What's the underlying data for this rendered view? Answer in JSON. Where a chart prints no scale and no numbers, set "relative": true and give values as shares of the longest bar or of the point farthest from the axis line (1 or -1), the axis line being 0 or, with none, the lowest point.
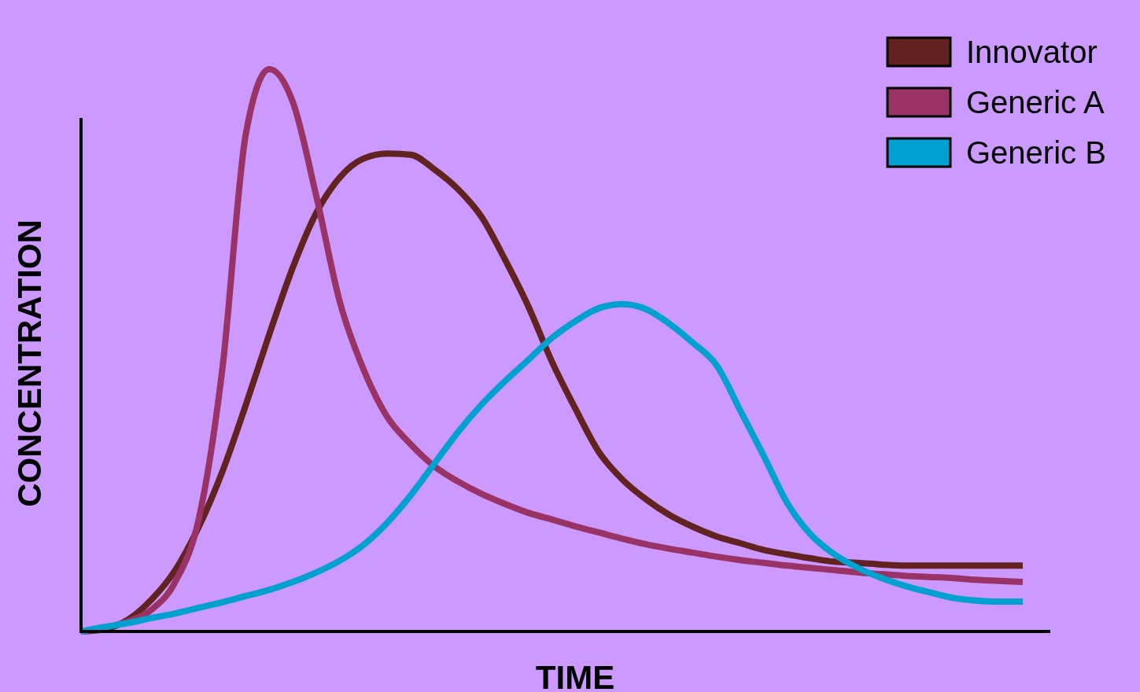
{
  "chart_data": {
    "type": "line",
    "relative": true,
    "xlabel": "TIME",
    "ylabel": "CONCENTRATION",
    "legend": "top right",
    "marker": "none",
    "line_style": "solid",
    "categories": [
      null,
      null,
      null,
      null,
      null,
      null,
      null,
      null,
      null,
      null,
      null,
      null,
      null,
      null,
      null,
      null,
      null,
      null,
      null,
      null,
      null,
      null,
      null,
      null,
      null,
      null,
      null,
      null,
      null,
      null,
      null,
      null,
      null,
      null,
      null,
      null,
      null,
      null,
      null,
      null,
      null
    ],
    "series": [
      {
        "name": "Innovator",
        "color": "#62221f",
        "values": [
          0,
          0.004,
          0.021,
          0.057,
          0.109,
          0.186,
          0.284,
          0.403,
          0.529,
          0.648,
          0.745,
          0.808,
          0.841,
          0.85,
          0.848,
          0.822,
          0.787,
          0.738,
          0.662,
          0.578,
          0.48,
          0.396,
          0.319,
          0.27,
          0.235,
          0.207,
          0.186,
          0.169,
          0.157,
          0.145,
          0.137,
          0.13,
          0.124,
          0.122,
          0.119,
          0.117,
          0.117,
          0.117,
          0.117,
          0.117,
          0.117
        ]
      },
      {
        "name": "Generic A",
        "color": "#993366",
        "values": [
          0,
          0.007,
          0.018,
          0.039,
          0.088,
          0.2,
          0.466,
          0.885,
          1,
          0.941,
          0.773,
          0.585,
          0.466,
          0.382,
          0.333,
          0.294,
          0.267,
          0.245,
          0.227,
          0.211,
          0.199,
          0.187,
          0.176,
          0.165,
          0.155,
          0.147,
          0.14,
          0.133,
          0.127,
          0.122,
          0.117,
          0.113,
          0.109,
          0.105,
          0.102,
          0.099,
          0.097,
          0.095,
          0.092,
          0.09,
          0.088
        ]
      },
      {
        "name": "Generic B",
        "color": "#00a0d0",
        "values": [
          0,
          0.008,
          0.015,
          0.024,
          0.032,
          0.042,
          0.052,
          0.063,
          0.074,
          0.088,
          0.105,
          0.126,
          0.154,
          0.193,
          0.242,
          0.298,
          0.354,
          0.403,
          0.445,
          0.483,
          0.522,
          0.552,
          0.575,
          0.582,
          0.573,
          0.547,
          0.513,
          0.473,
          0.393,
          0.312,
          0.228,
          0.172,
          0.137,
          0.113,
          0.095,
          0.081,
          0.07,
          0.06,
          0.055,
          0.053,
          0.053
        ]
      }
    ]
  }
}
